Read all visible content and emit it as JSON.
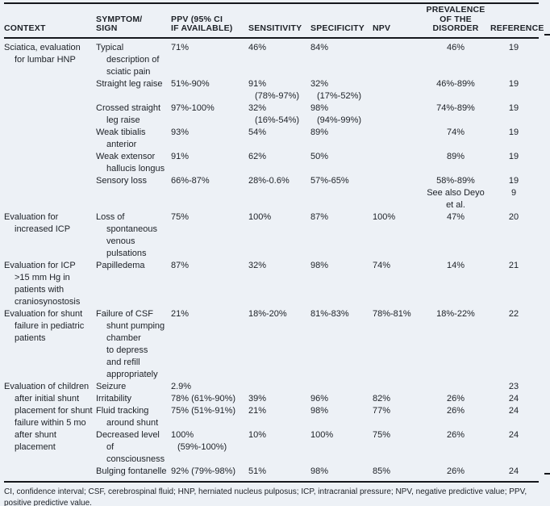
{
  "colors": {
    "background": "#edf1f6",
    "text": "#1d2127",
    "rule": "#15171c"
  },
  "table": {
    "headers": {
      "context": "CONTEXT",
      "symptom": "SYMPTOM/\nSIGN",
      "ppv": "PPV (95% CI\nIF AVAILABLE)",
      "sensitivity": "SENSITIVITY",
      "specificity": "SPECIFICITY",
      "npv": "NPV",
      "prevalence": "PREVALENCE\nOF THE\nDISORDER",
      "reference": "REFERENCE"
    },
    "sections": [
      {
        "context": "Sciatica, evaluation\nfor lumbar HNP",
        "rows": [
          {
            "symptom": "Typical\ndescription of\nsciatic pain",
            "ppv": "71%",
            "sensitivity": "46%",
            "specificity": "84%",
            "npv": "",
            "prevalence": "46%",
            "reference": "19"
          },
          {
            "symptom": "Straight leg raise",
            "ppv": "51%-90%",
            "sensitivity": "91%\n(78%-97%)",
            "specificity": "32%\n(17%-52%)",
            "npv": "",
            "prevalence": "46%-89%",
            "reference": "19"
          },
          {
            "symptom": "Crossed straight\nleg raise",
            "ppv": "97%-100%",
            "sensitivity": "32%\n(16%-54%)",
            "specificity": "98%\n(94%-99%)",
            "npv": "",
            "prevalence": "74%-89%",
            "reference": "19"
          },
          {
            "symptom": "Weak tibialis\nanterior",
            "ppv": "93%",
            "sensitivity": "54%",
            "specificity": "89%",
            "npv": "",
            "prevalence": "74%",
            "reference": "19"
          },
          {
            "symptom": "Weak extensor\nhallucis longus",
            "ppv": "91%",
            "sensitivity": "62%",
            "specificity": "50%",
            "npv": "",
            "prevalence": "89%",
            "reference": "19"
          },
          {
            "symptom": "Sensory loss",
            "ppv": "66%-87%",
            "sensitivity": "28%-0.6%",
            "specificity": "57%-65%",
            "npv": "",
            "prevalence": "58%-89%",
            "reference": "19"
          },
          {
            "symptom": "",
            "ppv": "",
            "sensitivity": "",
            "specificity": "",
            "npv": "",
            "prevalence": "See also Deyo\net al.",
            "reference": "9"
          }
        ]
      },
      {
        "context": "Evaluation for\nincreased ICP",
        "rows": [
          {
            "symptom": "Loss of\nspontaneous\nvenous\npulsations",
            "ppv": "75%",
            "sensitivity": "100%",
            "specificity": "87%",
            "npv": "100%",
            "prevalence": "47%",
            "reference": "20"
          }
        ]
      },
      {
        "context": "Evaluation for ICP\n>15 mm Hg in\npatients with\ncraniosynostosis",
        "rows": [
          {
            "symptom": "Papilledema",
            "ppv": "87%",
            "sensitivity": "32%",
            "specificity": "98%",
            "npv": "74%",
            "prevalence": "14%",
            "reference": "21"
          }
        ]
      },
      {
        "context": "Evaluation for shunt\nfailure in pediatric\npatients",
        "rows": [
          {
            "symptom": "Failure of CSF\nshunt pumping\nchamber\nto depress\nand refill\nappropriately",
            "ppv": "21%",
            "sensitivity": "18%-20%",
            "specificity": "81%-83%",
            "npv": "78%-81%",
            "prevalence": "18%-22%",
            "reference": "22"
          }
        ]
      },
      {
        "context": "Evaluation of children\nafter initial shunt\nplacement for shunt\nfailure within 5 mo\nafter shunt\nplacement",
        "rows": [
          {
            "symptom": "Seizure",
            "ppv": "2.9%",
            "sensitivity": "",
            "specificity": "",
            "npv": "",
            "prevalence": "",
            "reference": "23"
          },
          {
            "symptom": "Irritability",
            "ppv": "78% (61%-90%)",
            "sensitivity": "39%",
            "specificity": "96%",
            "npv": "82%",
            "prevalence": "26%",
            "reference": "24"
          },
          {
            "symptom": "Fluid tracking\naround shunt",
            "ppv": "75% (51%-91%)",
            "sensitivity": "21%",
            "specificity": "98%",
            "npv": "77%",
            "prevalence": "26%",
            "reference": "24"
          },
          {
            "symptom": "Decreased level\nof\nconsciousness",
            "ppv": "100%\n(59%-100%)",
            "sensitivity": "10%",
            "specificity": "100%",
            "npv": "75%",
            "prevalence": "26%",
            "reference": "24"
          },
          {
            "symptom": "Bulging fontanelle",
            "ppv": "92% (79%-98%)",
            "sensitivity": "51%",
            "specificity": "98%",
            "npv": "85%",
            "prevalence": "26%",
            "reference": "24"
          }
        ]
      }
    ],
    "footnote": "CI, confidence interval; CSF, cerebrospinal fluid; HNP, herniated nucleus pulposus; ICP, intracranial pressure; NPV, negative predictive value; PPV, positive predictive value."
  }
}
